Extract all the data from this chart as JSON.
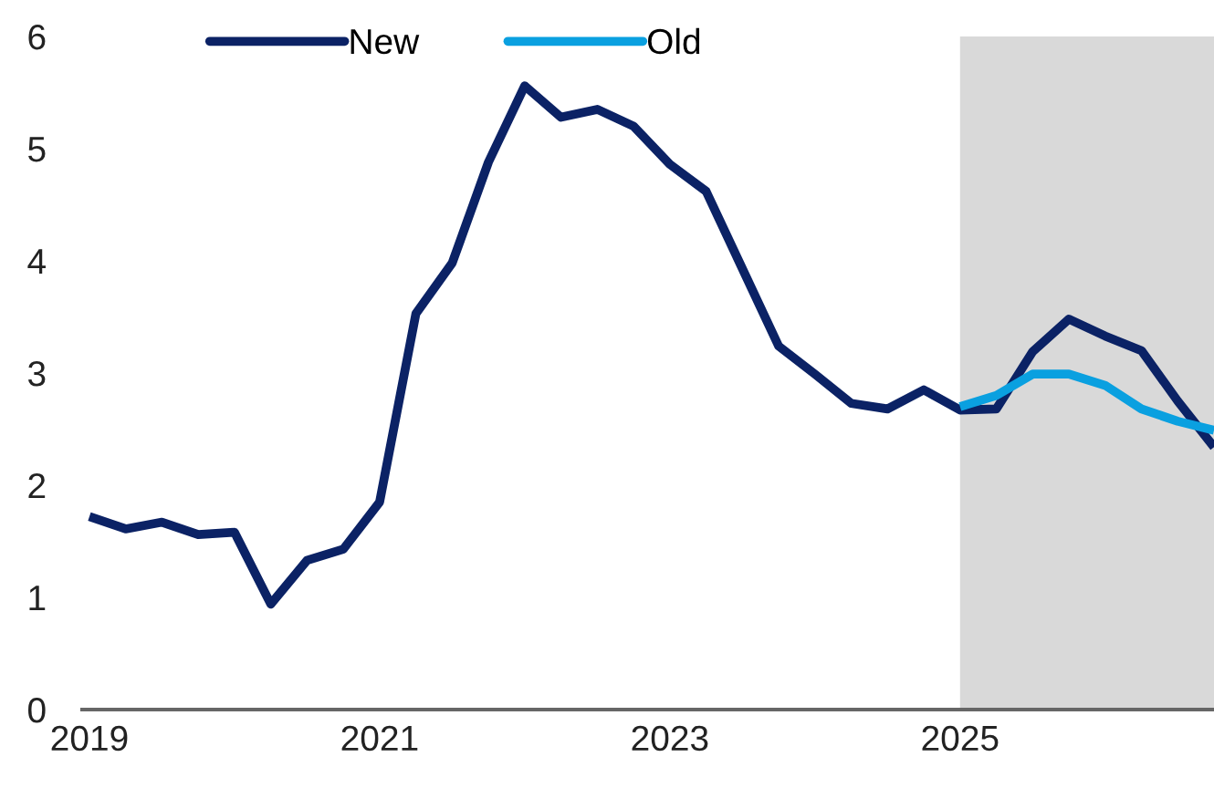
{
  "chart_data": {
    "type": "line",
    "x": [
      2019.0,
      2019.25,
      2019.5,
      2019.75,
      2020.0,
      2020.25,
      2020.5,
      2020.75,
      2021.0,
      2021.25,
      2021.5,
      2021.75,
      2022.0,
      2022.25,
      2022.5,
      2022.75,
      2023.0,
      2023.25,
      2023.5,
      2023.75,
      2024.0,
      2024.25,
      2024.5,
      2024.75,
      2025.0,
      2025.25,
      2025.5,
      2025.75,
      2026.0,
      2026.25,
      2026.5,
      2026.75
    ],
    "series": [
      {
        "name": "New",
        "color": "#0b2265",
        "values": [
          1.72,
          1.61,
          1.67,
          1.56,
          1.58,
          0.94,
          1.33,
          1.43,
          1.85,
          3.53,
          3.98,
          4.88,
          5.56,
          5.28,
          5.35,
          5.2,
          4.86,
          4.62,
          3.93,
          3.24,
          2.99,
          2.73,
          2.68,
          2.85,
          2.67,
          2.68,
          3.19,
          3.48,
          3.33,
          3.2,
          2.75,
          2.34
        ]
      },
      {
        "name": "Old",
        "color": "#0aa0e0",
        "x": [
          2025.0,
          2025.25,
          2025.5,
          2025.75,
          2026.0,
          2026.25,
          2026.5,
          2026.75
        ],
        "values": [
          2.7,
          2.8,
          2.99,
          2.99,
          2.89,
          2.68,
          2.57,
          2.49
        ]
      }
    ],
    "xlim": [
      2018.95,
      2026.75
    ],
    "xticks": [
      2019,
      2021,
      2023,
      2025
    ],
    "ylim": [
      0,
      6
    ],
    "yticks": [
      0,
      1,
      2,
      3,
      4,
      5,
      6
    ],
    "bands": [
      {
        "axis": "x",
        "from": 2025.0,
        "to": 2026.75,
        "color": "#d9d9d9"
      }
    ],
    "grid": false,
    "legend": "top",
    "line_style": "solid",
    "marker": "none"
  }
}
